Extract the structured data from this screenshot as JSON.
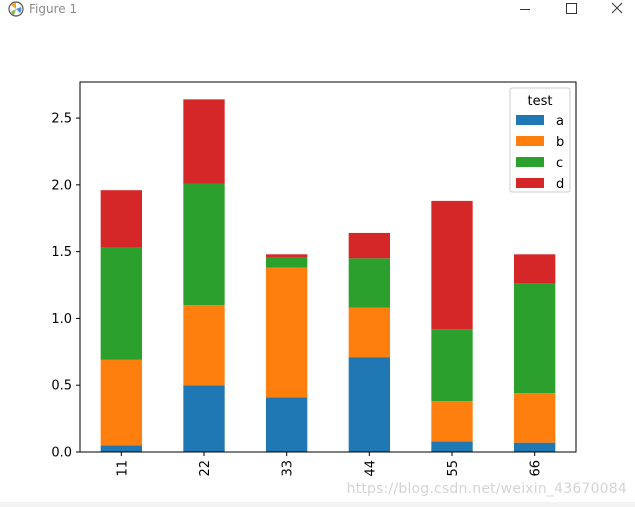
{
  "window": {
    "title": "Figure 1",
    "icons": {
      "app": "matplotlib-logo-icon",
      "minimize": "minimize-icon",
      "maximize": "maximize-icon",
      "close": "close-icon"
    }
  },
  "colors": {
    "a": "#1f77b4",
    "b": "#ff7f0e",
    "c": "#2ca02c",
    "d": "#d62728"
  },
  "watermark": "https://blog.csdn.net/weixin_43670084",
  "chart_data": {
    "type": "bar",
    "stacked": true,
    "categories": [
      "11",
      "22",
      "33",
      "44",
      "55",
      "66"
    ],
    "series": [
      {
        "name": "a",
        "values": [
          0.05,
          0.5,
          0.41,
          0.71,
          0.08,
          0.07
        ]
      },
      {
        "name": "b",
        "values": [
          0.64,
          0.6,
          0.97,
          0.37,
          0.3,
          0.37
        ]
      },
      {
        "name": "c",
        "values": [
          0.84,
          0.91,
          0.08,
          0.37,
          0.54,
          0.82
        ]
      },
      {
        "name": "d",
        "values": [
          0.43,
          0.63,
          0.02,
          0.19,
          0.96,
          0.22
        ]
      }
    ],
    "legend_title": "test",
    "legend_position": "top-right",
    "ylim": [
      0,
      2.77
    ],
    "yticks": [
      0.0,
      0.5,
      1.0,
      1.5,
      2.0,
      2.5
    ],
    "ytick_labels": [
      "0.0",
      "0.5",
      "1.0",
      "1.5",
      "2.0",
      "2.5"
    ],
    "xtick_rotation": 90,
    "grid": false
  }
}
